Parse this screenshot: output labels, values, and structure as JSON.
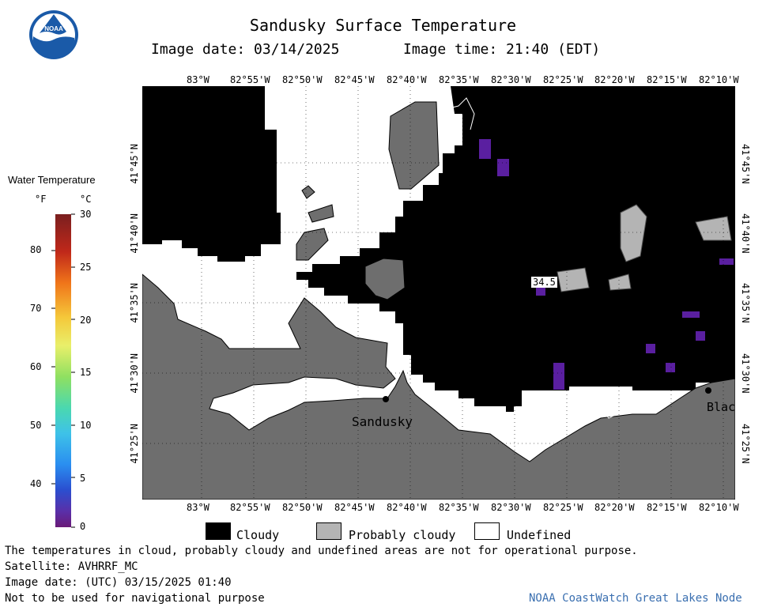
{
  "header": {
    "title": "Sandusky Surface Temperature",
    "image_date": "Image date: 03/14/2025",
    "image_time": "Image time: 21:40 (EDT)",
    "logo_text": "NOAA"
  },
  "scale": {
    "title": "Water Temperature",
    "unit_f": "°F",
    "unit_c": "°C",
    "f_ticks": [
      "80",
      "70",
      "60",
      "50",
      "40"
    ],
    "c_ticks": [
      "30",
      "25",
      "20",
      "15",
      "10",
      "5",
      "0"
    ]
  },
  "axes": {
    "lon_ticks": [
      "83°W",
      "82°55'W",
      "82°50'W",
      "82°45'W",
      "82°40'W",
      "82°35'W",
      "82°30'W",
      "82°25'W",
      "82°20'W",
      "82°15'W",
      "82°10'W"
    ],
    "lat_ticks": [
      "41°45'N",
      "41°40'N",
      "41°35'N",
      "41°30'N",
      "41°25'N"
    ]
  },
  "map": {
    "places": [
      "Sandusky",
      "Blac"
    ],
    "temp_label": "34.5"
  },
  "legend": {
    "items": [
      {
        "label": "Cloudy",
        "color": "#000000"
      },
      {
        "label": "Probably cloudy",
        "color": "#b4b4b4"
      },
      {
        "label": "Undefined",
        "color": "#ffffff"
      }
    ]
  },
  "footer": {
    "disclaimer": "The temperatures in cloud, probably cloudy and undefined areas are not for operational purpose.",
    "satellite": "Satellite: AVHRRF_MC",
    "utc_date": "Image date: (UTC) 03/15/2025  01:40",
    "nav_warning": "Not to be used for navigational purpose",
    "credit": "NOAA CoastWatch Great Lakes Node"
  },
  "colors": {
    "land": "#6e6e6e",
    "cloud": "#000000",
    "probably_cloudy": "#b4b4b4",
    "water_cold": "#5a1fa0",
    "credit": "#3a6fb0"
  }
}
